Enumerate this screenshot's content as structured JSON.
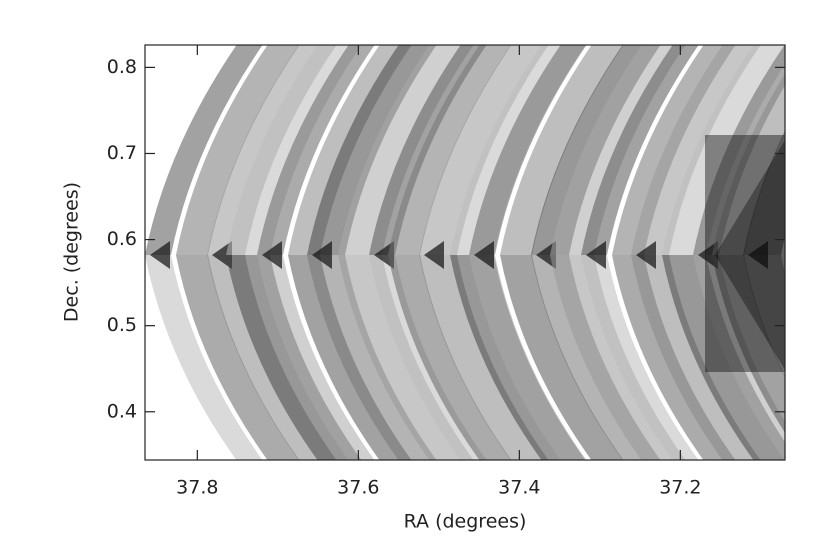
{
  "chart_data": {
    "type": "coverage",
    "xlabel": "RA (degrees)",
    "ylabel": "Dec. (degrees)",
    "xlim": [
      37.865,
      37.07
    ],
    "ylim": [
      0.344,
      0.826
    ],
    "xticks": [
      37.8,
      37.6,
      37.4,
      37.2
    ],
    "yticks": [
      0.4,
      0.5,
      0.6,
      0.7,
      0.8
    ]
  }
}
